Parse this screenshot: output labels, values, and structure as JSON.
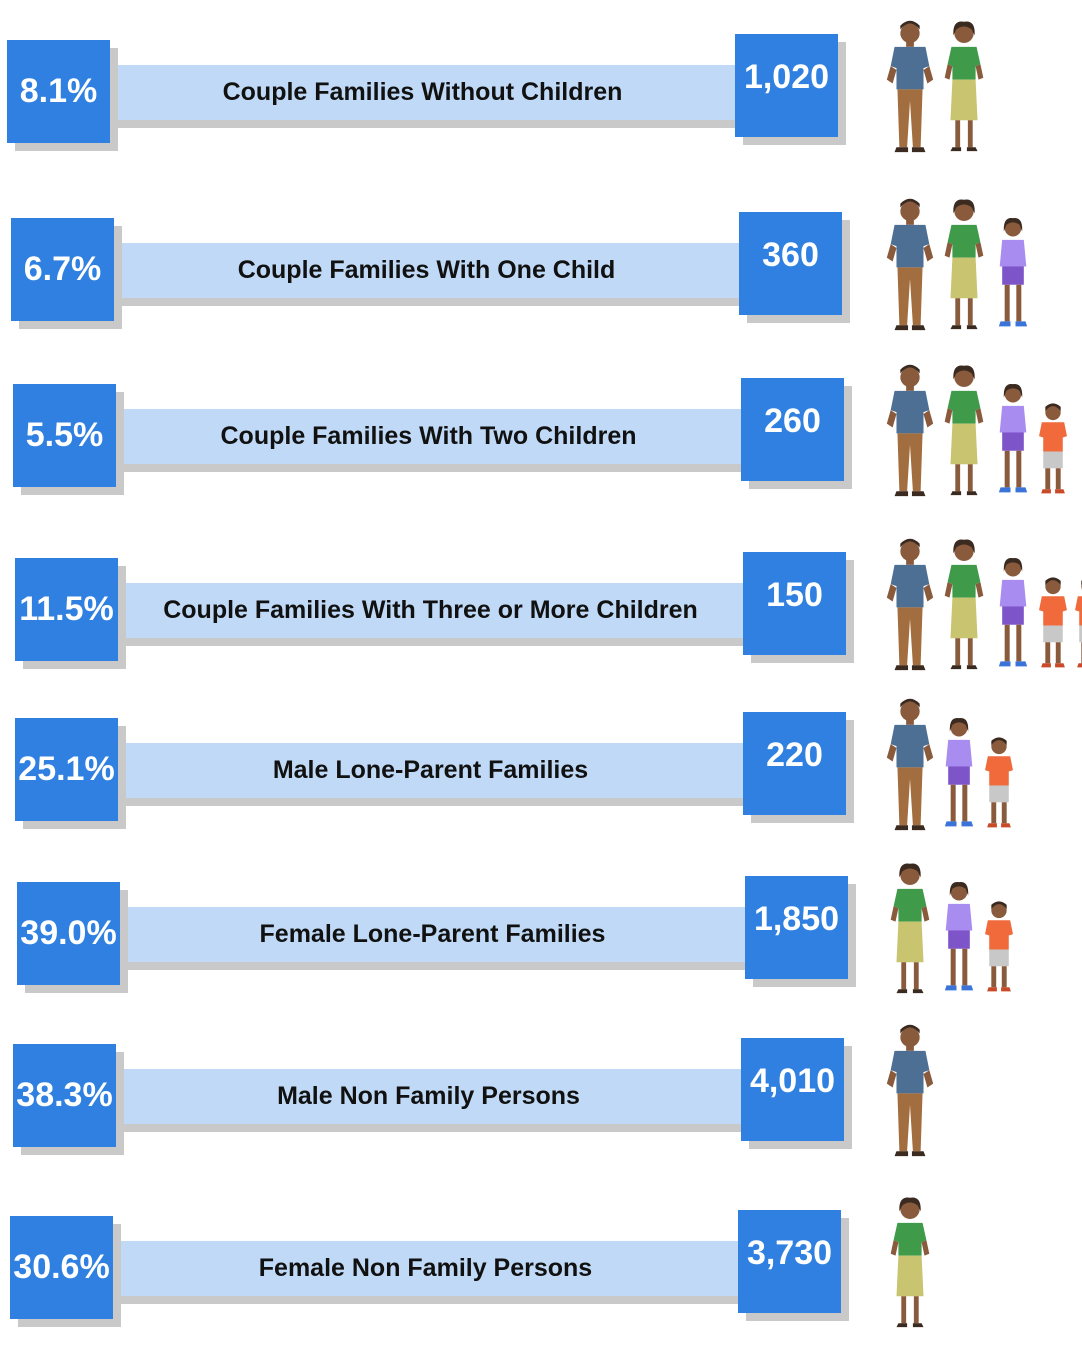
{
  "rows": [
    {
      "percent": "8.1%",
      "label": "Couple Families Without Children",
      "count": "1,020"
    },
    {
      "percent": "6.7%",
      "label": "Couple Families With One Child",
      "count": "360"
    },
    {
      "percent": "5.5%",
      "label": "Couple Families With Two Children",
      "count": "260"
    },
    {
      "percent": "11.5%",
      "label": "Couple Families With Three or More Children",
      "count": "150"
    },
    {
      "percent": "25.1%",
      "label": "Male Lone-Parent Families",
      "count": "220"
    },
    {
      "percent": "39.0%",
      "label": "Female Lone-Parent Families",
      "count": "1,850"
    },
    {
      "percent": "38.3%",
      "label": "Male Non Family Persons",
      "count": "4,010"
    },
    {
      "percent": "30.6%",
      "label": "Female Non Family Persons",
      "count": "3,730"
    }
  ]
}
